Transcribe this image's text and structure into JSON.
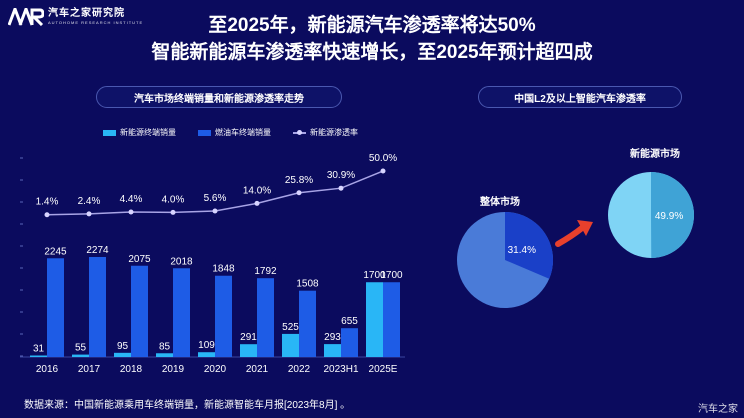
{
  "brand": {
    "name_cn": "汽车之家研究院",
    "name_en": "AUTOHOME RESEARCH INSTITUTE"
  },
  "title_line1": "至2025年，新能源汽车渗透率将达50%",
  "title_line2": "智能新能源车渗透率快速增长，至2025年预计超四成",
  "left_panel_title": "汽车市场终端销量和新能源渗透率走势",
  "right_panel_title": "中国L2及以上智能汽车渗透率",
  "source": "数据来源：中国新能源乘用车终端销量，新能源智能车月报[2023年8月] 。",
  "watermark": "汽车之家",
  "colors": {
    "nev": "#29b6f6",
    "ice": "#1e5ce6",
    "line": "#a8a4e6",
    "pie_overall_bg": "#4a7bd8",
    "pie_overall_fg": "#1a40c8",
    "pie_nev_bg": "#7fd4f5",
    "pie_nev_fg": "#3fa3d6",
    "arrow": "#e8402c"
  },
  "chart_data": [
    {
      "type": "bar",
      "title": "汽车市场终端销量和新能源渗透率走势",
      "categories": [
        "2016",
        "2017",
        "2018",
        "2019",
        "2020",
        "2021",
        "2022",
        "2023H1",
        "2025E"
      ],
      "series": [
        {
          "name": "新能源终端销量",
          "values": [
            31,
            55,
            95,
            85,
            109,
            291,
            525,
            293,
            1700
          ]
        },
        {
          "name": "燃油车终端销量",
          "values": [
            2245,
            2274,
            2075,
            2018,
            1848,
            1792,
            1508,
            655,
            1700
          ]
        },
        {
          "name": "新能源渗透率",
          "type": "line",
          "values": [
            1.4,
            2.4,
            4.4,
            4.0,
            5.6,
            14.0,
            25.8,
            30.9,
            50.0
          ],
          "labels": [
            "1.4%",
            "2.4%",
            "4.4%",
            "4.0%",
            "5.6%",
            "14.0%",
            "25.8%",
            "30.9%",
            "50.0%"
          ]
        }
      ],
      "grid": false,
      "legend": "top"
    },
    {
      "type": "pie",
      "title": "整体市场",
      "values": [
        31.4,
        68.6
      ],
      "label": "31.4%"
    },
    {
      "type": "pie",
      "title": "新能源市场",
      "values": [
        49.9,
        50.1
      ],
      "label": "49.9%"
    }
  ]
}
